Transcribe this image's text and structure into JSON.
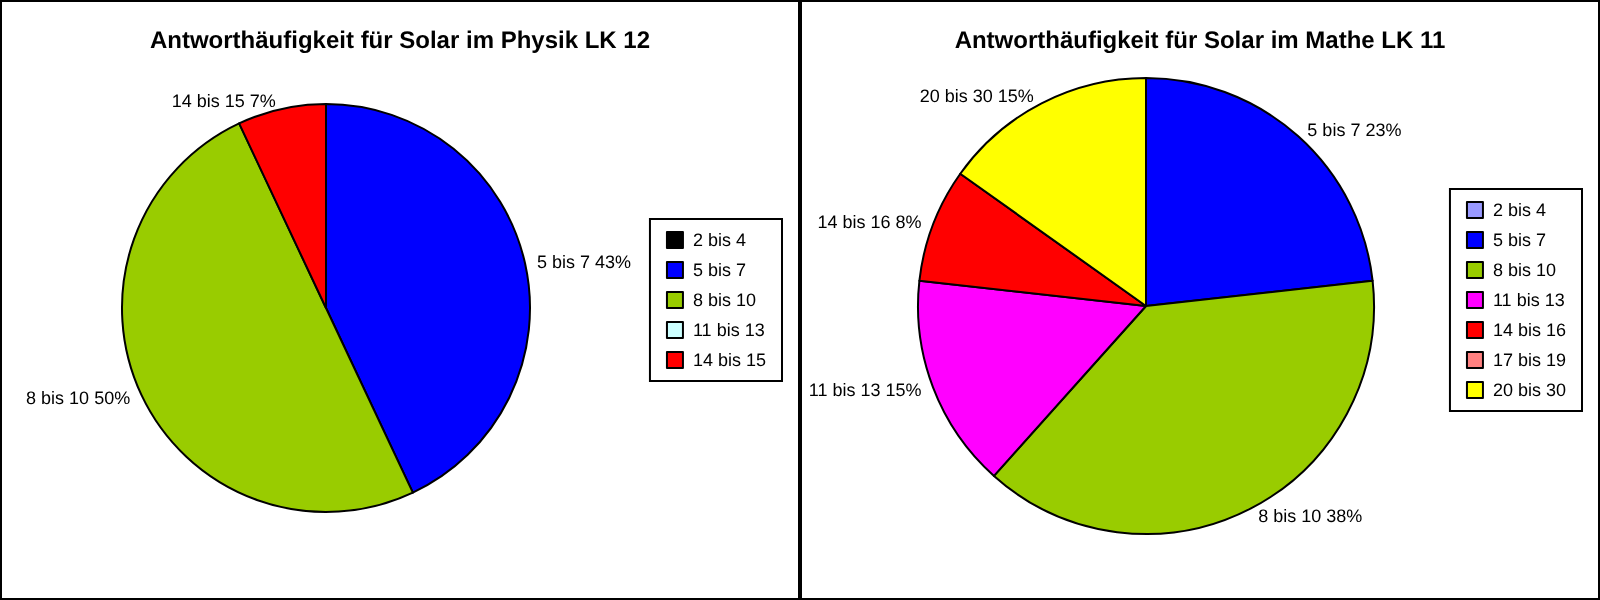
{
  "chart_data": [
    {
      "type": "pie",
      "title": "Antworthäufigkeit für Solar im Physik LK 12",
      "legend": "right",
      "categories": [
        "2 bis 4",
        "5 bis 7",
        "8 bis 10",
        "11 bis 13",
        "14 bis 15"
      ],
      "values": [
        0,
        43,
        50,
        0,
        7
      ],
      "colors": [
        "#000000",
        "#0000ff",
        "#99cc00",
        "#ccffff",
        "#ff0000"
      ],
      "value_labels": [
        null,
        "5 bis 7 43%",
        "8 bis 10 50%",
        null,
        "14 bis 15 7%"
      ]
    },
    {
      "type": "pie",
      "title": "Antworthäufigkeit für Solar im Mathe LK 11",
      "legend": "right",
      "categories": [
        "2 bis 4",
        "5 bis 7",
        "8 bis 10",
        "11 bis 13",
        "14 bis 16",
        "17 bis 19",
        "20 bis 30"
      ],
      "values": [
        0,
        23,
        38,
        15,
        8,
        0,
        15
      ],
      "colors": [
        "#9999ff",
        "#0000ff",
        "#99cc00",
        "#ff00ff",
        "#ff0000",
        "#ff8080",
        "#ffff00"
      ],
      "value_labels": [
        null,
        "5 bis 7 23%",
        "8 bis 10 38%",
        "11 bis 13 15%",
        "14 bis 16 8%",
        null,
        "20 bis 30 15%"
      ]
    }
  ]
}
